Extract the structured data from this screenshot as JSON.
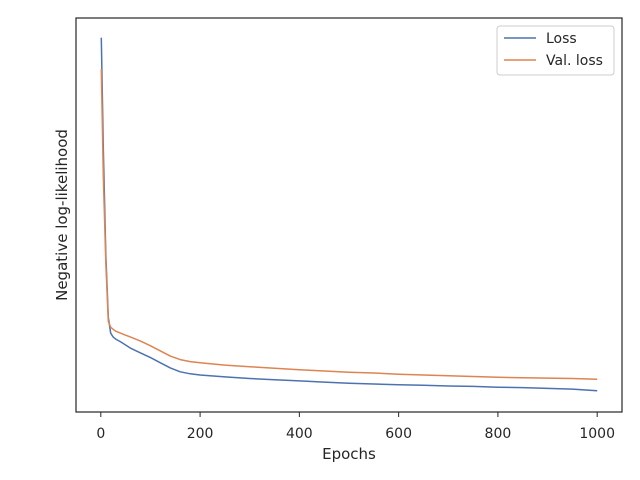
{
  "chart_data": {
    "type": "line",
    "title": "",
    "xlabel": "Epochs",
    "ylabel": "Negative log-likelihood",
    "xlim": [
      -50,
      1050
    ],
    "ylim": [
      0,
      1
    ],
    "xticks": [
      0,
      200,
      400,
      600,
      800,
      1000
    ],
    "yticks_shown": false,
    "grid": false,
    "legend_position": "top-right",
    "series": [
      {
        "name": "Loss",
        "color": "#4c72b0",
        "x": [
          1,
          5,
          10,
          15,
          20,
          25,
          30,
          40,
          50,
          60,
          80,
          100,
          120,
          140,
          160,
          180,
          200,
          250,
          300,
          350,
          400,
          450,
          500,
          550,
          600,
          650,
          700,
          750,
          800,
          850,
          900,
          950,
          1000
        ],
        "y": [
          0.95,
          0.67,
          0.4,
          0.24,
          0.2,
          0.19,
          0.185,
          0.178,
          0.17,
          0.162,
          0.15,
          0.138,
          0.125,
          0.112,
          0.102,
          0.097,
          0.094,
          0.089,
          0.085,
          0.082,
          0.079,
          0.076,
          0.073,
          0.071,
          0.069,
          0.068,
          0.066,
          0.065,
          0.063,
          0.062,
          0.06,
          0.058,
          0.054
        ]
      },
      {
        "name": "Val. loss",
        "color": "#dd8452",
        "x": [
          1,
          5,
          10,
          15,
          20,
          25,
          30,
          40,
          50,
          60,
          80,
          100,
          120,
          140,
          160,
          180,
          200,
          250,
          300,
          350,
          400,
          450,
          500,
          550,
          600,
          650,
          700,
          750,
          800,
          850,
          900,
          950,
          1000
        ],
        "y": [
          0.87,
          0.6,
          0.38,
          0.23,
          0.215,
          0.21,
          0.205,
          0.2,
          0.195,
          0.19,
          0.18,
          0.168,
          0.155,
          0.142,
          0.133,
          0.128,
          0.125,
          0.119,
          0.115,
          0.111,
          0.107,
          0.104,
          0.101,
          0.099,
          0.096,
          0.094,
          0.092,
          0.09,
          0.088,
          0.087,
          0.086,
          0.085,
          0.083
        ]
      }
    ]
  }
}
